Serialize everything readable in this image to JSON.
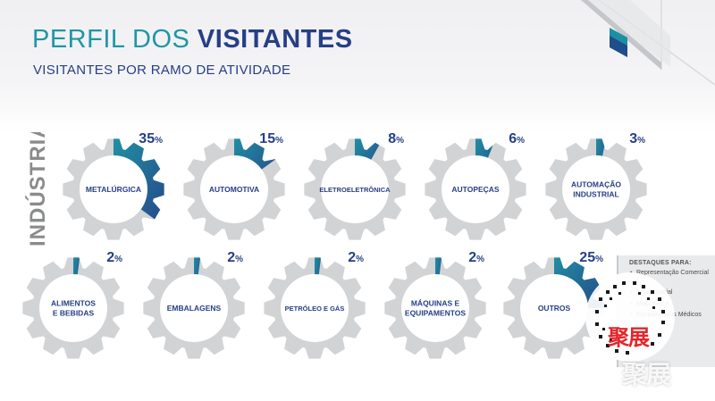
{
  "title_light": "PERFIL DOS ",
  "title_bold": "VISITANTES",
  "subtitle": "VISITANTES POR RAMO DE ATIVIDADE",
  "side_label": "INDÚSTRIA",
  "colors": {
    "gear": "#d2d3d5",
    "teal": "#2096a6",
    "navy": "#263f86",
    "label": "#263f86"
  },
  "chart_data": {
    "type": "pie",
    "title": "Visitantes por ramo de atividade",
    "categories": [
      "METALÚRGICA",
      "AUTOMOTIVA",
      "ELETROELETRÔNICA",
      "AUTOPEÇAS",
      "AUTOMAÇÃO INDUSTRIAL",
      "ALIMENTOS E BEBIDAS",
      "EMBALAGENS",
      "PETRÓLEO E GÁS",
      "MÁQUINAS E EQUIPAMENTOS",
      "OUTROS"
    ],
    "values": [
      35,
      15,
      8,
      6,
      3,
      2,
      2,
      2,
      2,
      25
    ],
    "items": [
      {
        "label": [
          "METALÚRGICA"
        ],
        "value": 35,
        "display": "35"
      },
      {
        "label": [
          "AUTOMOTIVA"
        ],
        "value": 15,
        "display": "15"
      },
      {
        "label": [
          "ELETROELETRÔNICA"
        ],
        "value": 8,
        "display": "8"
      },
      {
        "label": [
          "AUTOPEÇAS"
        ],
        "value": 6,
        "display": "6"
      },
      {
        "label": [
          "AUTOMAÇÃO",
          "INDUSTRIAL"
        ],
        "value": 3,
        "display": "3"
      },
      {
        "label": [
          "ALIMENTOS",
          "E BEBIDAS"
        ],
        "value": 2,
        "display": "2"
      },
      {
        "label": [
          "EMBALAGENS"
        ],
        "value": 2,
        "display": "2"
      },
      {
        "label": [
          "PETRÓLEO E GÁS"
        ],
        "value": 2,
        "display": "2"
      },
      {
        "label": [
          "MÁQUINAS E",
          "EQUIPAMENTOS"
        ],
        "value": 2,
        "display": "2"
      },
      {
        "label": [
          "OUTROS"
        ],
        "value": 25,
        "display": "25"
      }
    ],
    "unit": "%"
  },
  "callout": {
    "title": "DESTAQUES PARA:",
    "items": [
      "Representação Comercial /",
      "Aeroespacial",
      "Máquinas e",
      "Equipamentos Médicos"
    ]
  },
  "watermark": {
    "text_red": "聚展",
    "text_white": "聚展"
  }
}
